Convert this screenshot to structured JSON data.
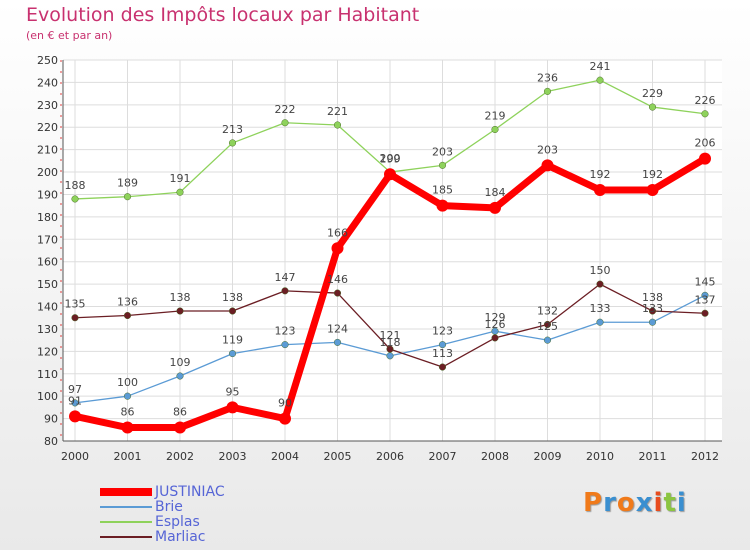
{
  "chart_data": {
    "type": "line",
    "title": "Evolution des Impôts locaux par Habitant",
    "subtitle": "(en € et par an)",
    "x": [
      "2000",
      "2001",
      "2002",
      "2003",
      "2004",
      "2005",
      "2006",
      "2007",
      "2008",
      "2009",
      "2010",
      "2011",
      "2012"
    ],
    "y_ticks": [
      80,
      90,
      100,
      110,
      120,
      130,
      140,
      150,
      160,
      170,
      180,
      190,
      200,
      210,
      220,
      230,
      240,
      250
    ],
    "ylim": [
      80,
      250
    ],
    "grid": true,
    "series": [
      {
        "name": "JUSTINIAC",
        "color": "#ff0000",
        "values": [
          91,
          86,
          86,
          95,
          90,
          166,
          199,
          185,
          184,
          203,
          192,
          192,
          206
        ]
      },
      {
        "name": "Brie",
        "color": "#5b9bd5",
        "values": [
          97,
          100,
          109,
          119,
          123,
          124,
          118,
          123,
          129,
          125,
          133,
          133,
          145
        ]
      },
      {
        "name": "Esplas",
        "color": "#8ed25b",
        "values": [
          188,
          189,
          191,
          213,
          222,
          221,
          200,
          203,
          219,
          236,
          241,
          229,
          226
        ]
      },
      {
        "name": "Marliac",
        "color": "#6b1e24",
        "values": [
          135,
          136,
          138,
          138,
          147,
          146,
          121,
          113,
          126,
          132,
          150,
          138,
          137
        ]
      }
    ]
  },
  "logo": {
    "letters": [
      "P",
      "r",
      "o",
      "x",
      "i",
      "t",
      "i"
    ],
    "colors": [
      "#f07a1a",
      "#3a8fd0",
      "#f07a1a",
      "#3a8fd0",
      "#e84c1e",
      "#8bc540",
      "#3a8fd0"
    ]
  }
}
